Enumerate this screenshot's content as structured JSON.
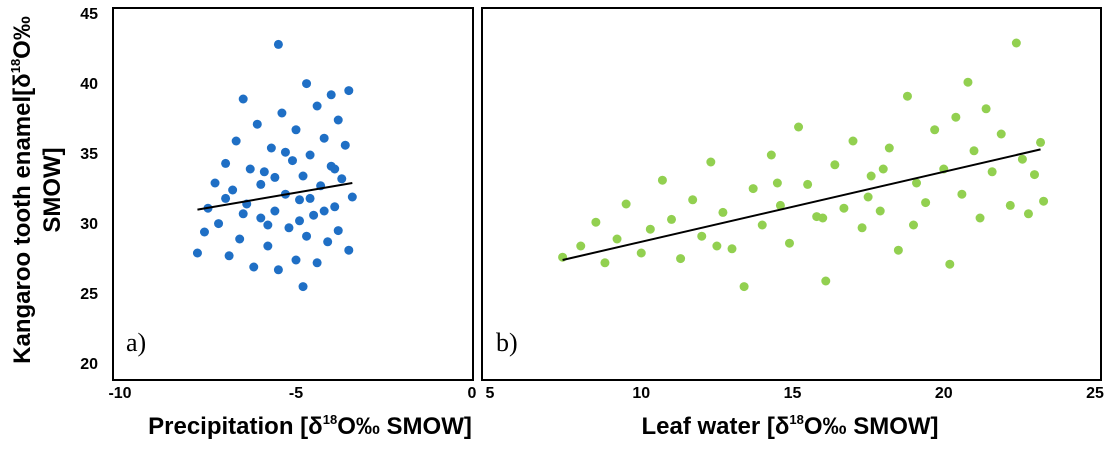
{
  "chart_data": [
    {
      "type": "scatter",
      "panel_label": "a)",
      "color": "#1f6fc5",
      "ylabel_lines": [
        [
          "Kangaroo tooth enamel[δ",
          "18",
          "O‰"
        ],
        [
          "SMOW]"
        ]
      ],
      "xlabel": [
        "Precipitation [δ",
        "18",
        "O‰ SMOW]"
      ],
      "xlim": [
        -10,
        0
      ],
      "xticks": [
        -10,
        -5,
        0
      ],
      "ylim": [
        20,
        45
      ],
      "yticks": [
        20,
        25,
        30,
        35,
        40,
        45
      ],
      "x": [
        -7.8,
        -7.6,
        -7.5,
        -7.3,
        -7.2,
        -7.0,
        -6.9,
        -6.8,
        -6.7,
        -6.6,
        -6.5,
        -6.4,
        -6.3,
        -6.2,
        -6.1,
        -6.0,
        -5.9,
        -5.8,
        -5.7,
        -5.6,
        -5.5,
        -5.4,
        -5.3,
        -5.2,
        -5.1,
        -5.0,
        -5.0,
        -4.9,
        -4.8,
        -4.8,
        -4.7,
        -4.7,
        -4.6,
        -4.5,
        -4.4,
        -4.4,
        -4.3,
        -4.2,
        -4.1,
        -4.0,
        -4.0,
        -3.9,
        -3.8,
        -3.8,
        -3.7,
        -3.6,
        -3.5,
        -3.5,
        -3.4,
        -5.5,
        -6.0,
        -5.8,
        -5.3,
        -4.9,
        -4.6,
        -5.6,
        -6.5,
        -7.0,
        -4.2,
        -3.9
      ],
      "values": [
        28.0,
        29.5,
        31.2,
        33.0,
        30.1,
        34.4,
        27.8,
        32.5,
        36.0,
        29.0,
        39.0,
        31.5,
        34.0,
        27.0,
        37.2,
        30.5,
        33.8,
        28.5,
        35.5,
        31.0,
        26.8,
        38.0,
        32.2,
        29.8,
        34.6,
        27.5,
        36.8,
        31.8,
        25.6,
        33.5,
        40.1,
        29.2,
        35.0,
        30.7,
        38.5,
        27.3,
        32.8,
        36.2,
        28.8,
        34.2,
        39.3,
        31.3,
        37.5,
        29.6,
        33.3,
        35.7,
        39.6,
        28.2,
        32.0,
        42.9,
        32.9,
        30.0,
        35.2,
        30.3,
        31.9,
        33.4,
        30.8,
        31.9,
        31.0,
        34.0
      ],
      "trendline": {
        "x": [
          -7.8,
          -3.4
        ],
        "values": [
          31.1,
          33.0
        ]
      }
    },
    {
      "type": "scatter",
      "panel_label": "b)",
      "color": "#92d050",
      "xlabel": [
        "Leaf water [δ",
        "18",
        "O‰ SMOW]"
      ],
      "xlim": [
        5,
        25
      ],
      "xticks": [
        5,
        10,
        15,
        20,
        25
      ],
      "ylim": [
        20,
        45
      ],
      "x": [
        7.4,
        8.0,
        8.5,
        8.8,
        9.2,
        9.5,
        10.0,
        10.3,
        10.7,
        11.0,
        11.3,
        11.7,
        12.0,
        12.3,
        12.7,
        13.0,
        13.4,
        13.7,
        14.0,
        14.3,
        14.6,
        14.9,
        15.2,
        15.5,
        15.8,
        16.1,
        16.4,
        16.7,
        17.0,
        17.3,
        17.6,
        17.9,
        18.2,
        18.5,
        18.8,
        19.1,
        19.4,
        19.7,
        20.0,
        20.2,
        20.4,
        20.6,
        20.8,
        21.0,
        21.2,
        21.4,
        21.6,
        21.9,
        22.2,
        22.4,
        22.6,
        22.8,
        23.0,
        23.2,
        23.3,
        16.0,
        17.5,
        19.0,
        12.5,
        14.5,
        18.0
      ],
      "values": [
        27.7,
        28.5,
        30.2,
        27.3,
        29.0,
        31.5,
        28.0,
        29.7,
        33.2,
        30.4,
        27.6,
        31.8,
        29.2,
        34.5,
        30.9,
        28.3,
        25.6,
        32.6,
        30.0,
        35.0,
        31.4,
        28.7,
        37.0,
        32.9,
        30.6,
        26.0,
        34.3,
        31.2,
        36.0,
        29.8,
        33.5,
        31.0,
        35.5,
        28.2,
        39.2,
        33.0,
        31.6,
        36.8,
        34.0,
        27.2,
        37.7,
        32.2,
        40.2,
        35.3,
        30.5,
        38.3,
        33.8,
        36.5,
        31.4,
        43.0,
        34.7,
        30.8,
        33.6,
        35.9,
        31.7,
        30.5,
        32.0,
        30.0,
        28.5,
        33.0,
        34.0
      ],
      "trendline": {
        "x": [
          7.4,
          23.2
        ],
        "values": [
          27.5,
          35.4
        ]
      }
    }
  ]
}
